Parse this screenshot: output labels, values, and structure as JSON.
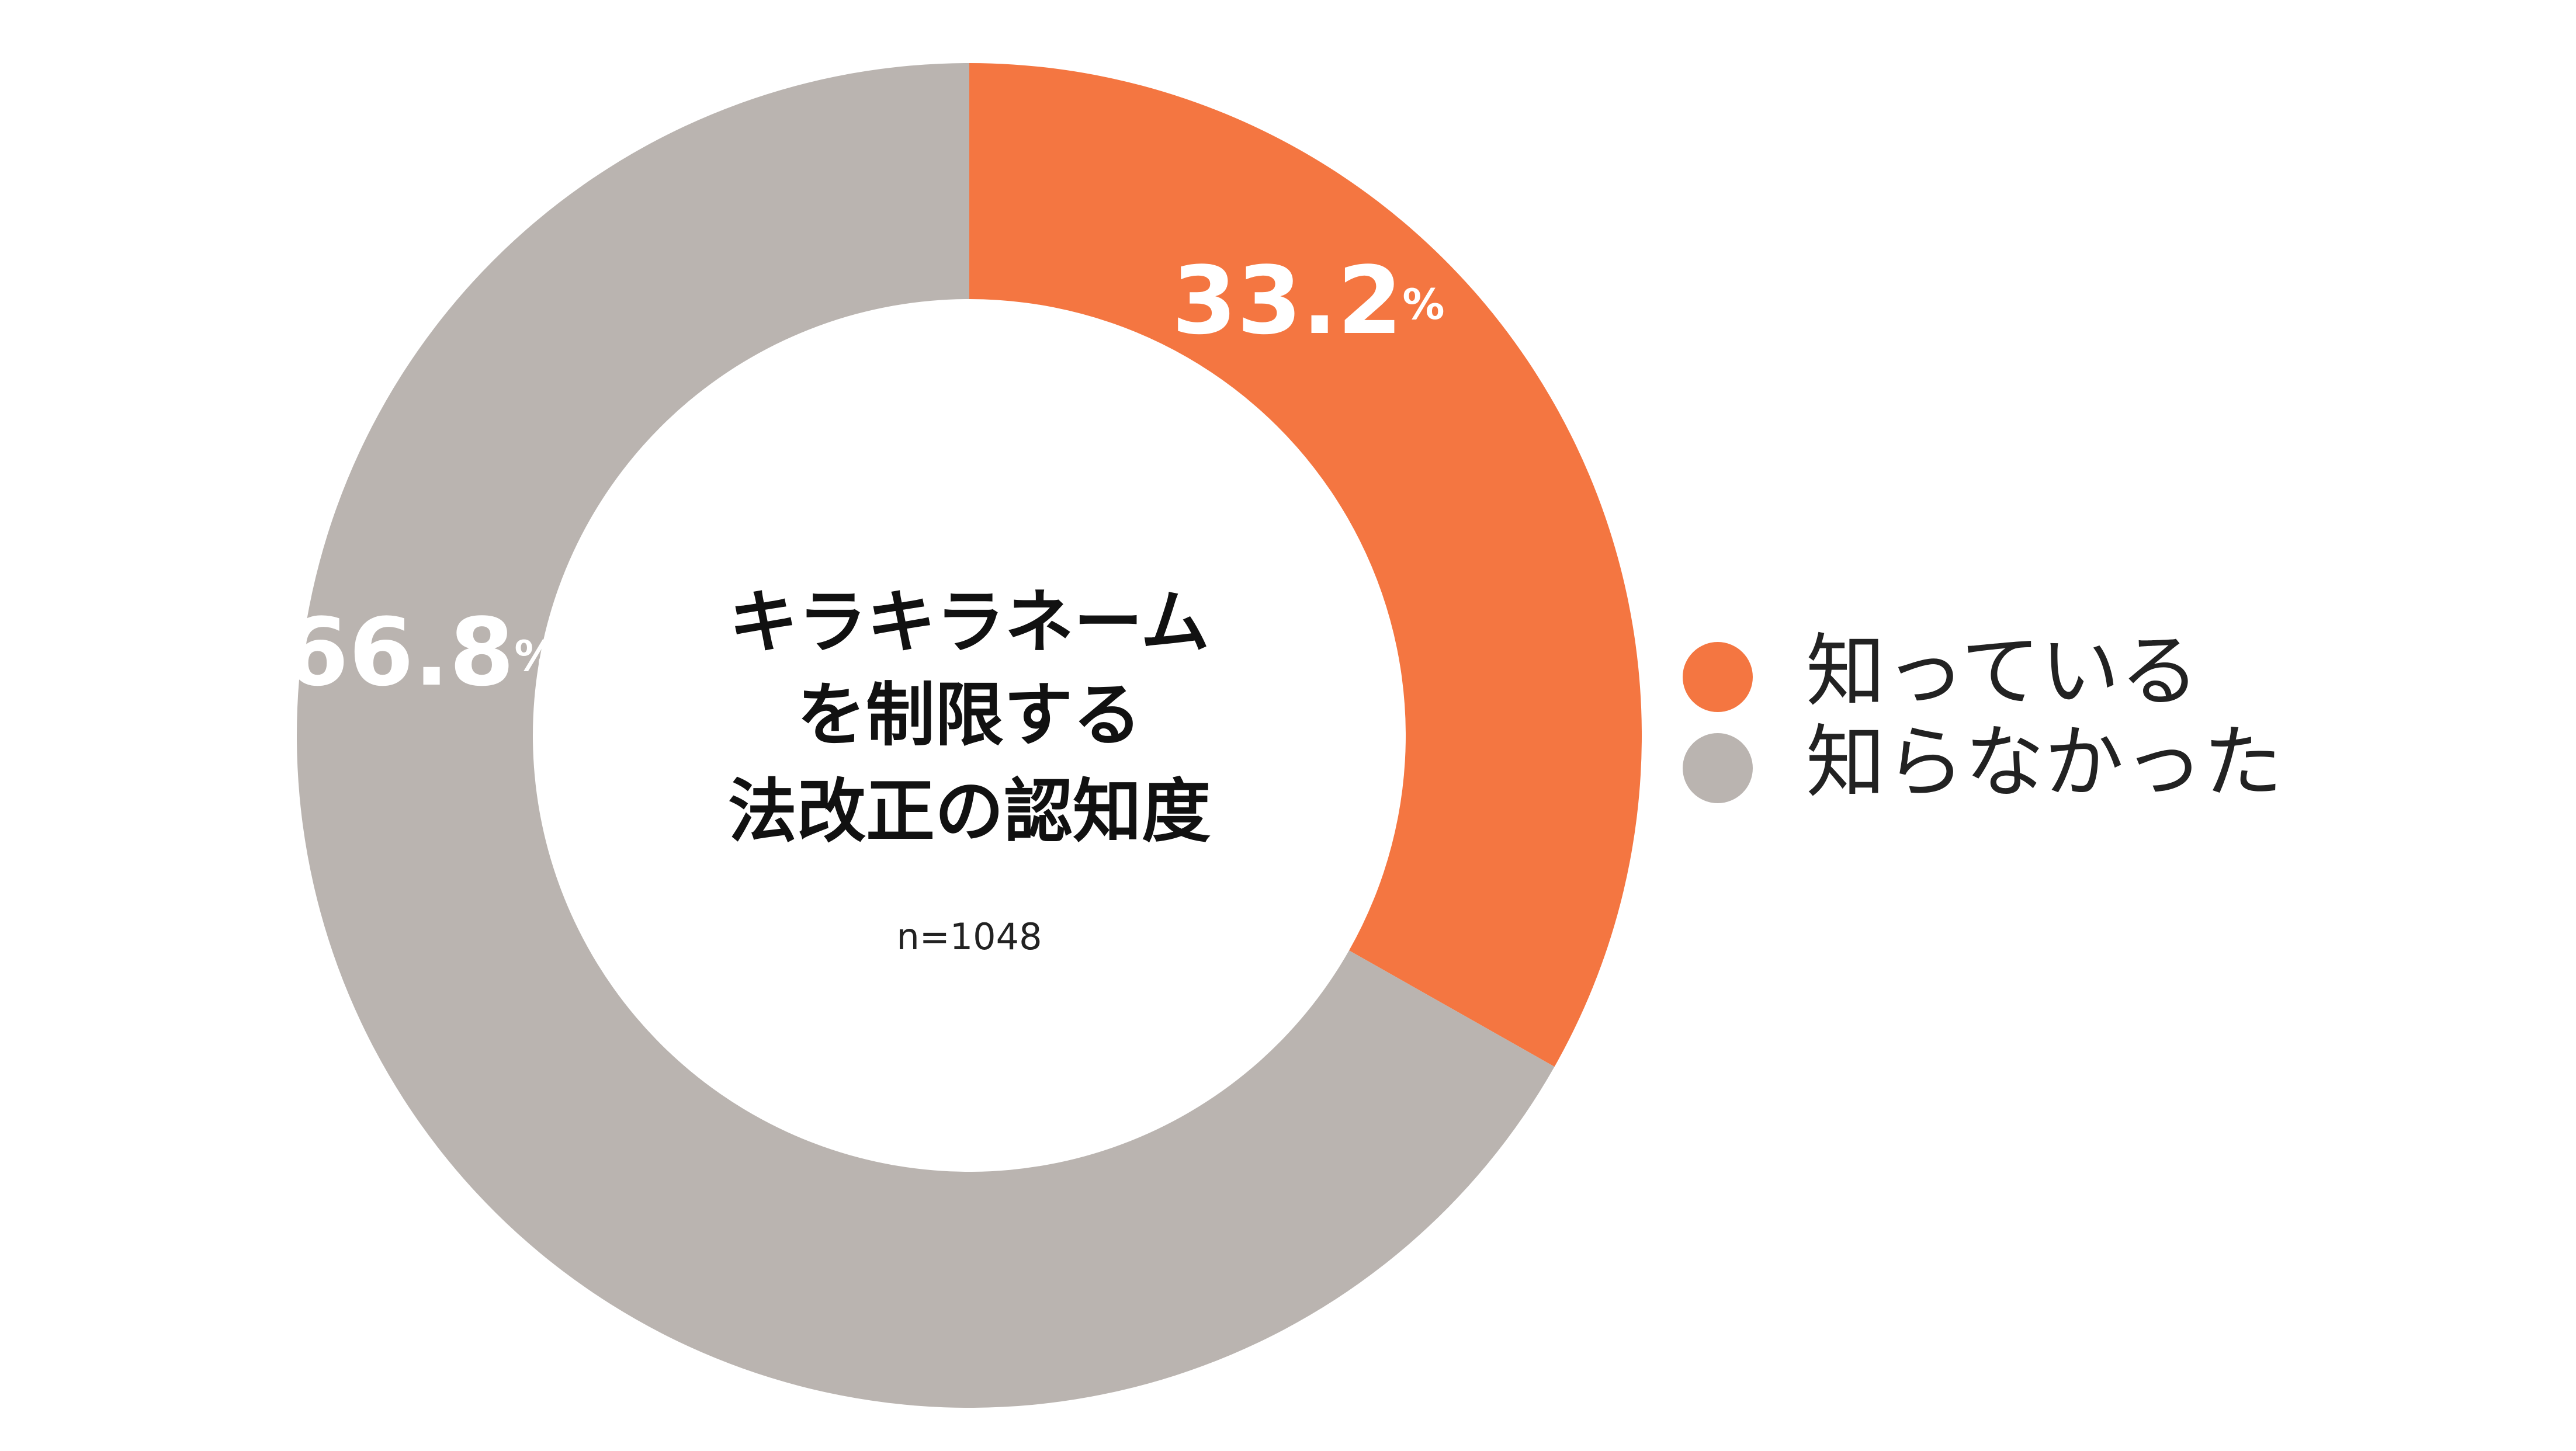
{
  "chart_data": {
    "type": "donut",
    "title": [
      "キラキラネーム",
      "を制限する",
      "法改正の認知度"
    ],
    "note": "n=1048",
    "categories": [
      "知っている",
      "知らなかった"
    ],
    "values": [
      33.2,
      66.8
    ],
    "value_labels": [
      "33.2%",
      "66.8%"
    ],
    "colors": [
      "#f47641",
      "#bab4b0"
    ],
    "legend": "right"
  }
}
